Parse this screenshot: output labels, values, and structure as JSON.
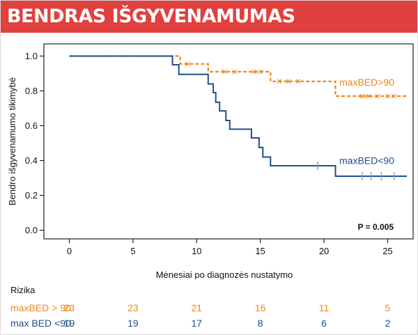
{
  "banner": {
    "title": "BENDRAS IŠGYVENAMUMAS"
  },
  "chart_data": {
    "type": "line",
    "title": "",
    "xlabel": "Mėnesiai po diagnozės nustatymo",
    "ylabel": "Bendro išgyvenamumo tikimybė",
    "xlim": [
      -2,
      27
    ],
    "ylim": [
      -0.05,
      1.07
    ],
    "x_ticks": [
      0,
      5,
      10,
      15,
      20,
      25
    ],
    "y_ticks": [
      0.0,
      0.2,
      0.4,
      0.6,
      0.8,
      1.0
    ],
    "x_tick_labels": [
      "0",
      "5",
      "10",
      "15",
      "20",
      "25"
    ],
    "y_tick_labels": [
      "0.0",
      "0.2",
      "0.4",
      "0.6",
      "0.8",
      "1.0"
    ],
    "annotation": "P = 0.005",
    "series": [
      {
        "name": "maxBED>90",
        "color": "#e8891e",
        "style": "dashed",
        "steps": [
          [
            0,
            1.0
          ],
          [
            8.7,
            1.0
          ],
          [
            8.7,
            0.955
          ],
          [
            10.9,
            0.955
          ],
          [
            10.9,
            0.91
          ],
          [
            15.8,
            0.91
          ],
          [
            15.8,
            0.855
          ],
          [
            20.9,
            0.855
          ],
          [
            20.9,
            0.77
          ],
          [
            26.5,
            0.77
          ]
        ],
        "censor_x": [
          9.3,
          12.2,
          13.0,
          14.5,
          15.0,
          16.5,
          17.2,
          18.0,
          23.0,
          23.5,
          24.2,
          25.0,
          25.5
        ]
      },
      {
        "name": "maxBED<90",
        "color": "#1f4e8c",
        "style": "solid",
        "steps": [
          [
            0,
            1.0
          ],
          [
            8.1,
            1.0
          ],
          [
            8.1,
            0.95
          ],
          [
            8.6,
            0.95
          ],
          [
            8.6,
            0.895
          ],
          [
            10.9,
            0.895
          ],
          [
            10.9,
            0.84
          ],
          [
            11.3,
            0.84
          ],
          [
            11.3,
            0.79
          ],
          [
            11.5,
            0.79
          ],
          [
            11.5,
            0.735
          ],
          [
            11.8,
            0.735
          ],
          [
            11.8,
            0.685
          ],
          [
            12.3,
            0.685
          ],
          [
            12.3,
            0.63
          ],
          [
            12.6,
            0.63
          ],
          [
            12.6,
            0.58
          ],
          [
            14.3,
            0.58
          ],
          [
            14.3,
            0.53
          ],
          [
            14.9,
            0.53
          ],
          [
            14.9,
            0.475
          ],
          [
            15.2,
            0.475
          ],
          [
            15.2,
            0.42
          ],
          [
            15.8,
            0.42
          ],
          [
            15.8,
            0.37
          ],
          [
            20.9,
            0.37
          ],
          [
            20.9,
            0.31
          ],
          [
            26.5,
            0.31
          ]
        ],
        "censor_x": [
          19.5,
          23.0,
          23.7,
          24.5,
          25.5
        ]
      }
    ],
    "series_labels": [
      {
        "text": "maxBED>90",
        "x": 21.2,
        "y": 0.83
      },
      {
        "text": "maxBED<90",
        "x": 21.2,
        "y": 0.38
      }
    ]
  },
  "risk_table": {
    "title": "Rizika",
    "rows": [
      {
        "label": "maxBED > 90",
        "color": "#e8891e",
        "values": [
          "23",
          "23",
          "21",
          "16",
          "11",
          "5"
        ]
      },
      {
        "label": "max BED <90",
        "color": "#1f4e8c",
        "values": [
          "19",
          "19",
          "17",
          "8",
          "6",
          "2"
        ]
      }
    ]
  }
}
